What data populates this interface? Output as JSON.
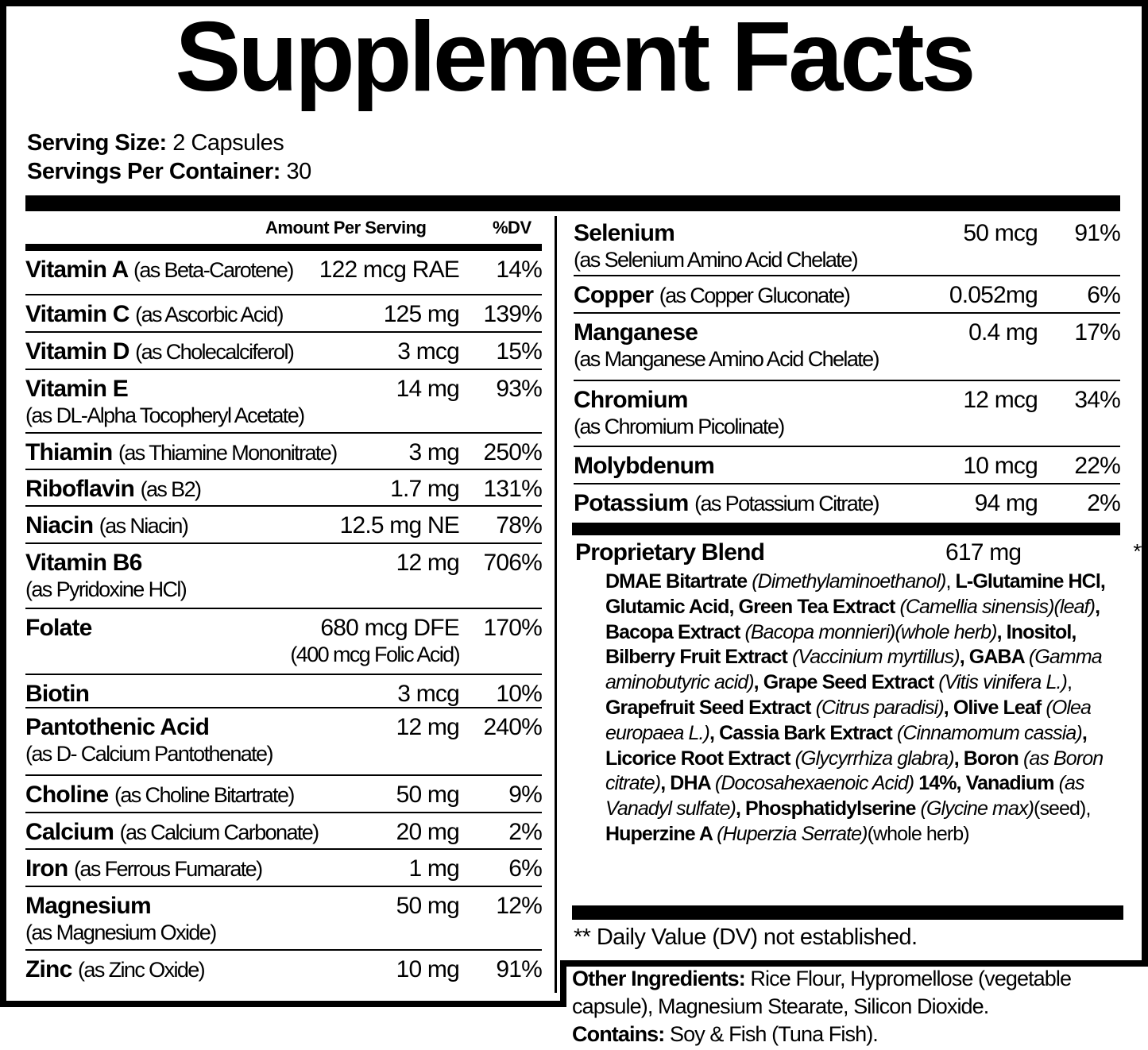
{
  "title": "Supplement Facts",
  "serving": {
    "size_label": "Serving Size:",
    "size_value": "2 Capsules",
    "per_container_label": "Servings Per Container:",
    "per_container_value": "30"
  },
  "headers": {
    "amount": "Amount Per Serving",
    "dv": "%DV"
  },
  "left_rows": [
    {
      "name": "Vitamin A",
      "form": "(as Beta-Carotene)",
      "amount": "122 mcg RAE",
      "dv": "14%"
    },
    {
      "name": "Vitamin C",
      "form": "(as Ascorbic Acid)",
      "amount": "125 mg",
      "dv": "139%"
    },
    {
      "name": "Vitamin D",
      "form": "(as Cholecalciferol)",
      "amount": "3 mcg",
      "dv": "15%"
    },
    {
      "name": "Vitamin E",
      "form2": "(as DL-Alpha Tocopheryl Acetate)",
      "amount": "14 mg",
      "dv": "93%"
    },
    {
      "name": "Thiamin",
      "form": "(as Thiamine Mononitrate)",
      "amount": "3 mg",
      "dv": "250%"
    },
    {
      "name": "Riboflavin",
      "form": "(as B2)",
      "amount": "1.7 mg",
      "dv": "131%"
    },
    {
      "name": "Niacin",
      "form": "(as Niacin)",
      "amount": "12.5 mg NE",
      "dv": "78%"
    },
    {
      "name": "Vitamin B6",
      "form2": "(as Pyridoxine HCl)",
      "amount": "12 mg",
      "dv": "706%"
    },
    {
      "name": "Folate",
      "amount": "680 mcg DFE",
      "amount_sub": "(400 mcg Folic Acid)",
      "dv": "170%"
    },
    {
      "name": "Biotin",
      "amount": "3 mcg",
      "dv": "10%"
    },
    {
      "name": "Pantothenic Acid",
      "form2": "(as D- Calcium Pantothenate)",
      "amount": "12 mg",
      "dv": "240%"
    },
    {
      "name": "Choline",
      "form": "(as Choline Bitartrate)",
      "amount": "50 mg",
      "dv": "9%"
    },
    {
      "name": "Calcium",
      "form": "(as Calcium Carbonate)",
      "amount": "20 mg",
      "dv": "2%"
    },
    {
      "name": "Iron",
      "form": "(as Ferrous Fumarate)",
      "amount": "1 mg",
      "dv": "6%"
    },
    {
      "name": "Magnesium",
      "form2": "(as Magnesium Oxide)",
      "amount": "50 mg",
      "dv": "12%"
    },
    {
      "name": "Zinc",
      "form": "(as Zinc Oxide)",
      "amount": "10 mg",
      "dv": "91%"
    }
  ],
  "right_rows": [
    {
      "name": "Selenium",
      "form2": "(as Selenium Amino Acid Chelate)",
      "amount": "50 mcg",
      "dv": "91%"
    },
    {
      "name": "Copper",
      "form": "(as Copper Gluconate)",
      "amount": "0.052mg",
      "dv": "6%"
    },
    {
      "name": "Manganese",
      "form2": "(as Manganese Amino Acid Chelate)",
      "amount": "0.4 mg",
      "dv": "17%"
    },
    {
      "name": "Chromium",
      "form2": "(as Chromium Picolinate)",
      "amount": "12 mcg",
      "dv": "34%"
    },
    {
      "name": "Molybdenum",
      "amount": "10 mcg",
      "dv": "22%"
    },
    {
      "name": "Potassium",
      "form": "(as Potassium Citrate)",
      "amount": "94 mg",
      "dv": "2%"
    }
  ],
  "blend": {
    "name": "Proprietary Blend",
    "amount": "617 mg",
    "dv": "**",
    "segments": [
      [
        "b",
        "DMAE Bitartrate "
      ],
      [
        "i",
        "(Dimethylaminoethanol)"
      ],
      [
        "n",
        ", "
      ],
      [
        "b",
        "L-Glutamine HCl, Glutamic Acid, Green Tea Extract "
      ],
      [
        "i",
        "(Camellia sinensis)(leaf)"
      ],
      [
        "b",
        ", Bacopa Extract "
      ],
      [
        "i",
        "(Bacopa monnieri)(whole herb)"
      ],
      [
        "b",
        ", Inositol, Bilberry Fruit Extract "
      ],
      [
        "i",
        "(Vaccinium myrtillus)"
      ],
      [
        "b",
        ", GABA "
      ],
      [
        "i",
        "(Gamma aminobutyric acid)"
      ],
      [
        "b",
        ", Grape Seed Extract "
      ],
      [
        "i",
        "(Vitis vinifera L.)"
      ],
      [
        "n",
        ", "
      ],
      [
        "b",
        "Grapefruit Seed Extract "
      ],
      [
        "i",
        "(Citrus paradisi)"
      ],
      [
        "b",
        ", Olive Leaf "
      ],
      [
        "i",
        "(Olea europaea L.)"
      ],
      [
        "b",
        ", Cassia Bark Extract "
      ],
      [
        "i",
        "(Cinnamomum cassia)"
      ],
      [
        "b",
        ", Licorice Root Extract "
      ],
      [
        "i",
        "(Glycyrrhiza glabra)"
      ],
      [
        "b",
        ", Boron "
      ],
      [
        "i",
        "(as Boron citrate)"
      ],
      [
        "b",
        ", DHA "
      ],
      [
        "i",
        "(Docosahexaenoic Acid)"
      ],
      [
        "b",
        " 14%, Vanadium "
      ],
      [
        "i",
        "(as Vanadyl sulfate)"
      ],
      [
        "b",
        ", Phosphatidylserine "
      ],
      [
        "i",
        "(Glycine max)"
      ],
      [
        "n",
        "(seed), "
      ],
      [
        "b",
        "Huperzine A "
      ],
      [
        "i",
        "(Huperzia Serrate)"
      ],
      [
        "n",
        "(whole herb)"
      ]
    ]
  },
  "footnote": "** Daily Value (DV) not established.",
  "other": {
    "label": "Other Ingredients:",
    "value": " Rice Flour, Hypromellose (vegetable capsule), Magnesium Stearate, Silicon Dioxide.",
    "contains_label": "Contains:",
    "contains_value": " Soy & Fish (Tuna Fish)."
  }
}
